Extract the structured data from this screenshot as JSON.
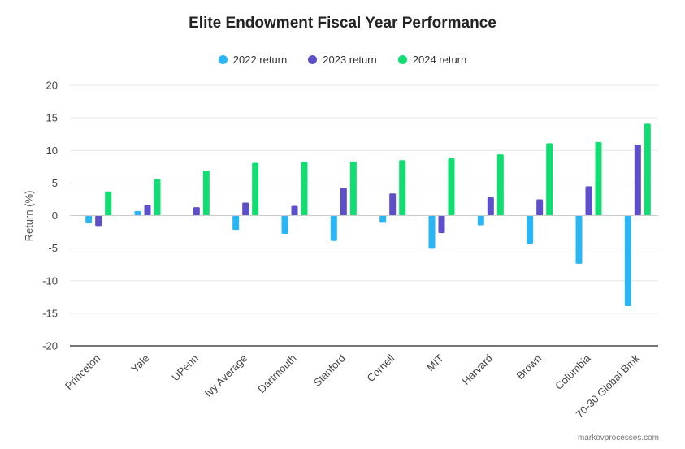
{
  "chart_data": {
    "type": "bar",
    "title": "Elite Endowment Fiscal Year Performance",
    "xlabel": "",
    "ylabel": "Return (%)",
    "ylim": [
      -20,
      20
    ],
    "yticks": [
      20,
      15,
      10,
      5,
      0,
      -5,
      -10,
      -15,
      -20
    ],
    "grid": true,
    "legend_position": "top",
    "categories": [
      "Princeton",
      "Yale",
      "UPenn",
      "Ivy Average",
      "Dartmouth",
      "Stanford",
      "Cornell",
      "MIT",
      "Harvard",
      "Brown",
      "Columbia",
      "70-30 Global Bmk"
    ],
    "series": [
      {
        "name": "2022 return",
        "color": "#29b6f6",
        "values": [
          -1.2,
          0.7,
          0,
          -2.2,
          -2.8,
          -3.9,
          -1.1,
          -5.1,
          -1.5,
          -4.3,
          -7.4,
          -13.9
        ]
      },
      {
        "name": "2023 return",
        "color": "#5c4fc9",
        "values": [
          -1.6,
          1.6,
          1.3,
          2.0,
          1.5,
          4.2,
          3.4,
          -2.7,
          2.8,
          2.5,
          4.5,
          10.9
        ]
      },
      {
        "name": "2024 return",
        "color": "#11dd73",
        "values": [
          3.7,
          5.6,
          6.9,
          8.1,
          8.2,
          8.3,
          8.5,
          8.8,
          9.4,
          11.1,
          11.3,
          14.1
        ]
      }
    ]
  },
  "watermark": "markovprocesses.com"
}
